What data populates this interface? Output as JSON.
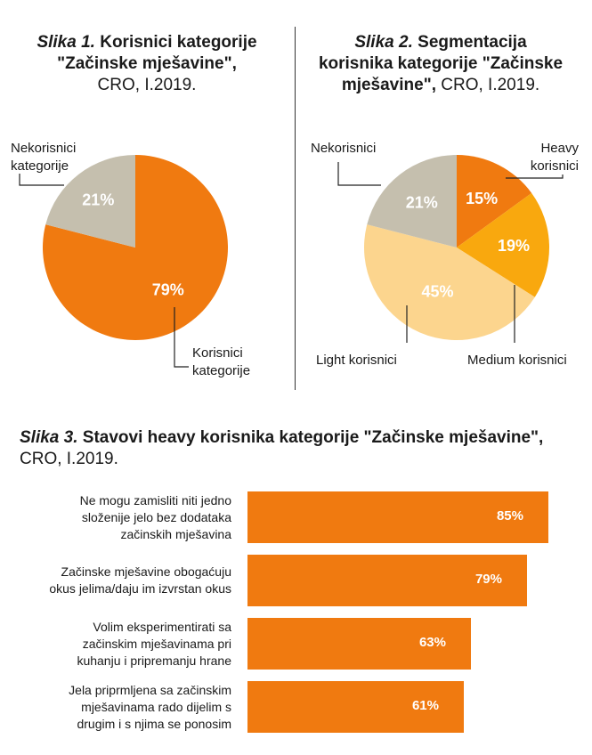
{
  "colors": {
    "orange": "#F07A10",
    "amber": "#F9A80E",
    "light": "#FCD58E",
    "grey": "#C5BFAE",
    "line": "#222222"
  },
  "figure1": {
    "title_prefix": "Slika 1.",
    "title_main": "Korisnici kategorije \"Začinske mješavine\",",
    "title_sub": "CRO, I.2019.",
    "label_nonusers": [
      "Nekorisnici",
      "kategorije"
    ],
    "label_users": [
      "Korisnici",
      "kategorije"
    ]
  },
  "figure2": {
    "title_prefix": "Slika 2.",
    "title_main1": "Segmentacija",
    "title_main2": "korisnika kategorije \"Začinske",
    "title_main3": "mješavine\",",
    "title_sub": "CRO, I.2019.",
    "label_nonusers": "Nekorisnici",
    "label_heavy": [
      "Heavy",
      "korisnici"
    ],
    "label_medium": "Medium korisnici",
    "label_light": "Light korisnici"
  },
  "figure3": {
    "title_prefix": "Slika 3.",
    "title_main": "Stavovi heavy korisnika kategorije \"Začinske mješavine\",",
    "title_sub": "CRO, I.2019."
  },
  "chart_data": [
    {
      "type": "pie",
      "title": "Korisnici kategorije \"Začinske mješavine\", CRO, I.2019.",
      "slices": [
        {
          "label": "Korisnici kategorije",
          "value": 79,
          "display": "79%",
          "color": "#F07A10"
        },
        {
          "label": "Nekorisnici kategorije",
          "value": 21,
          "display": "21%",
          "color": "#C5BFAE"
        }
      ]
    },
    {
      "type": "pie",
      "title": "Segmentacija korisnika kategorije \"Začinske mješavine\", CRO, I.2019.",
      "slices": [
        {
          "label": "Heavy korisnici",
          "value": 15,
          "display": "15%",
          "color": "#F07A10"
        },
        {
          "label": "Medium korisnici",
          "value": 19,
          "display": "19%",
          "color": "#F9A80E"
        },
        {
          "label": "Light korisnici",
          "value": 45,
          "display": "45%",
          "color": "#FCD58E"
        },
        {
          "label": "Nekorisnici",
          "value": 21,
          "display": "21%",
          "color": "#C5BFAE"
        }
      ]
    },
    {
      "type": "bar",
      "orientation": "horizontal",
      "title": "Stavovi heavy korisnika kategorije \"Začinske mješavine\", CRO, I.2019.",
      "categories": [
        [
          "Ne mogu zamisliti niti jedno",
          "složenije jelo bez dodataka",
          "začinskih mješavina"
        ],
        [
          "Začinske mješavine obogaćuju",
          "okus jelima/daju im izvrstan okus"
        ],
        [
          "Volim eksperimentirati sa",
          "začinskim mješavinama pri",
          "kuhanju i pripremanju hrane"
        ],
        [
          "Jela priprmljena sa začinskim",
          "mješavinama rado dijelim s",
          "drugim i s njima se ponosim"
        ]
      ],
      "values": [
        85,
        79,
        63,
        61
      ],
      "value_labels": [
        "85%",
        "79%",
        "63%",
        "61%"
      ],
      "xlim": [
        0,
        100
      ]
    }
  ]
}
